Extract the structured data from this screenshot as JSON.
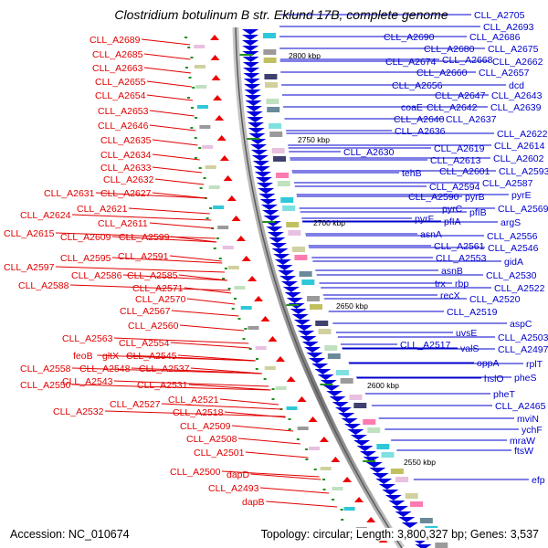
{
  "title": "Clostridium botulinum B str. Eklund 17B, complete genome",
  "footer": {
    "accession": "Accession: NC_010674",
    "topology": "Topology: circular; Length: 3,800,327 bp; Genes: 3,537"
  },
  "colors": {
    "left_labels": "#e00000",
    "right_labels": "#0000cc",
    "backbone": "#888888",
    "cds_arrows": "#0000dd",
    "rna_markers": "#ee0000"
  },
  "scale": [
    "2800 kbp",
    "2750 kbp",
    "2700 kbp",
    "2650 kbp",
    "2600 kbp",
    "2550 kbp"
  ],
  "left_labels": [
    "CLL_A2689",
    "CLL_A2685",
    "CLL_A2663",
    "CLL_A2655",
    "CLL_A2654",
    "CLL_A2653",
    "CLL_A2646",
    "CLL_A2635",
    "CLL_A2634",
    "CLL_A2633",
    "CLL_A2632",
    "CLL_A2631",
    "CLL_A2627",
    "CLL_A2624",
    "CLL_A2621",
    "CLL_A2615",
    "CLL_A2611",
    "CLL_A2609",
    "CLL_A2599",
    "CLL_A2597",
    "CLL_A2595",
    "CLL_A2591",
    "CLL_A2588",
    "CLL_A2586",
    "CLL_A2585",
    "CLL_A2571",
    "CLL_A2570",
    "CLL_A2567",
    "CLL_A2563",
    "CLL_A2560",
    "CLL_A2554",
    "feoB",
    "gltX",
    "CLL_A2545",
    "CLL_A2558",
    "CLL_A2548",
    "CLL_A2537",
    "CLL_A2550",
    "CLL_A2543",
    "CLL_A2531",
    "CLL_A2532",
    "CLL_A2527",
    "CLL_A2521",
    "CLL_A2518",
    "CLL_A2509",
    "CLL_A2508",
    "CLL_A2501",
    "CLL_A2500",
    "dapD",
    "CLL_A2493",
    "dapB"
  ],
  "right_labels": [
    "CLL_A2705",
    "CLL_A2693",
    "CLL_A2690",
    "CLL_A2686",
    "CLL_A2680",
    "CLL_A2675",
    "CLL_A2674",
    "CLL_A2668",
    "CLL_A2662",
    "CLL_A2660",
    "CLL_A2657",
    "CLL_A2656",
    "dcd",
    "CLL_A2647",
    "CLL_A2643",
    "coaE",
    "CLL_A2642",
    "CLL_A2639",
    "CLL_A2640",
    "CLL_A2637",
    "CLL_A2636",
    "CLL_A2622",
    "CLL_A2630",
    "CLL_A2619",
    "CLL_A2614",
    "CLL_A2613",
    "CLL_A2602",
    "tehB",
    "CLL_A2601",
    "CLL_A2593",
    "CLL_A2594",
    "CLL_A2587",
    "CLL_A2590",
    "pyrB",
    "pyrE",
    "pyrC",
    "pfIB",
    "CLL_A2569",
    "pyrF",
    "pfIA",
    "argS",
    "asnA",
    "CLL_A2556",
    "CLL_A2561",
    "CLL_A2546",
    "CLL_A2553",
    "gidA",
    "asnB",
    "CLL_A2530",
    "trx",
    "rbp",
    "CLL_A2522",
    "recX",
    "CLL_A2520",
    "CLL_A2519",
    "uvsE",
    "aspC",
    "CLL_A2517",
    "valS",
    "CLL_A2503",
    "CLL_A2497",
    "oppA",
    "rplT",
    "hslO",
    "pheS",
    "pheT",
    "CLL_A2465",
    "mviN",
    "ychF",
    "mraW",
    "ftsW",
    "efp"
  ]
}
